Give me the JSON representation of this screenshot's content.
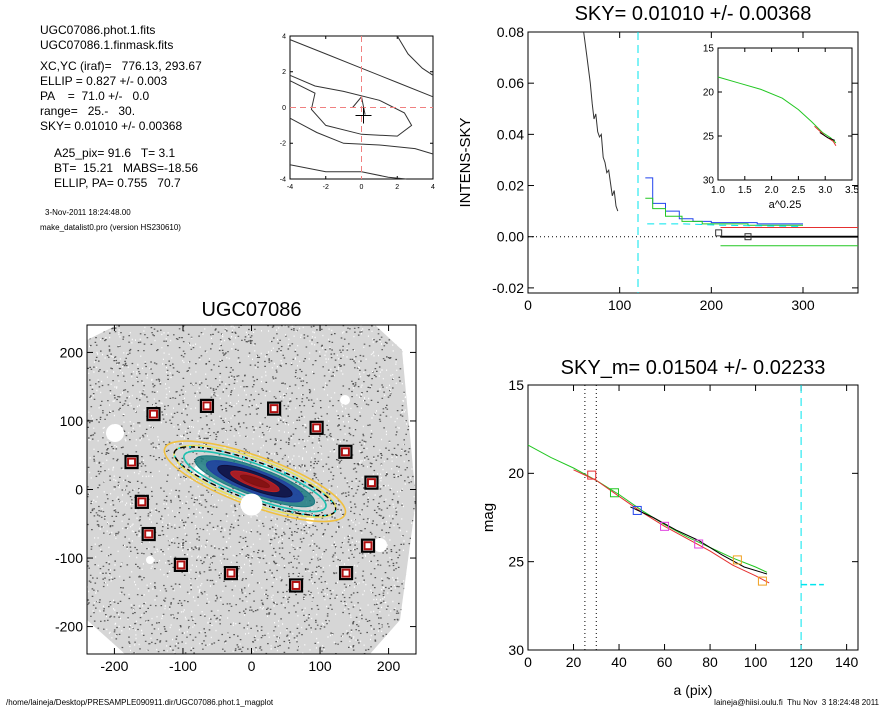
{
  "info": {
    "lines": [
      "UGC07086.phot.1.fits",
      "UGC07086.1.finmask.fits",
      "XC,YC (iraf)=   776.13, 293.67",
      "ELLIP = 0.827 +/- 0.003",
      "PA    =  71.0 +/-   0.0",
      "range=   25.-   30.",
      "SKY= 0.01010 +/- 0.00368",
      "A25_pix= 91.6   T= 3.1",
      "BT=  15.21   MABS=-18.56",
      "ELLIP, PA= 0.755   70.7",
      "3-Nov-2011 18:24:48.00",
      "make_datalist0.pro (version HS230610)"
    ]
  },
  "footer": {
    "left": "/home/laineja/Desktop/PRESAMPLE090911.dir/UGC07086.phot.1_magplot",
    "right": "laineja@hiisi.oulu.fi  Thu Nov  3 18:24:48 2011"
  },
  "colors": {
    "cyan": "#00e5ee",
    "green": "#22c722",
    "blue": "#2244ee",
    "red": "#e53030",
    "magenta": "#e040e0",
    "orange": "#f0a020",
    "gray": "#555555",
    "box_red": "#b01010"
  },
  "chart_data": [
    {
      "id": "center_contour",
      "type": "line",
      "xlim": [
        -4,
        4
      ],
      "ylim": [
        -4,
        4
      ],
      "xticks": [
        "-4",
        "-2",
        "0",
        "2",
        "4"
      ],
      "yticks": [
        "-4",
        "-2",
        "0",
        "2",
        "4"
      ],
      "contours": [
        [
          [
            -4.0,
            3.8
          ],
          [
            -2.0,
            3.0
          ],
          [
            0.0,
            2.2
          ],
          [
            2.0,
            1.4
          ],
          [
            4.0,
            0.6
          ]
        ],
        [
          [
            -4.0,
            1.8
          ],
          [
            -2.6,
            1.2
          ],
          [
            -1.0,
            0.9
          ],
          [
            1.0,
            0.4
          ],
          [
            2.4,
            -0.3
          ],
          [
            2.8,
            -1.0
          ],
          [
            2.0,
            -1.6
          ],
          [
            0.0,
            -1.5
          ],
          [
            -2.0,
            -1.0
          ],
          [
            -2.8,
            -0.1
          ],
          [
            -2.6,
            0.8
          ],
          [
            -4.0,
            1.5
          ]
        ],
        [
          [
            -4.0,
            -0.6
          ],
          [
            -2.5,
            -1.4
          ],
          [
            -1.0,
            -2.0
          ],
          [
            1.0,
            -2.1
          ],
          [
            3.0,
            -2.3
          ],
          [
            4.0,
            -2.6
          ]
        ],
        [
          [
            -4.0,
            -3.2
          ],
          [
            -2.0,
            -3.6
          ],
          [
            0.0,
            -3.6
          ],
          [
            1.5,
            -3.9
          ],
          [
            2.5,
            -4.0
          ]
        ],
        [
          [
            2.0,
            4.0
          ],
          [
            2.6,
            3.0
          ],
          [
            3.4,
            2.2
          ],
          [
            4.0,
            1.8
          ]
        ],
        [
          [
            -0.5,
            0.0
          ],
          [
            0.0,
            0.6
          ],
          [
            0.2,
            -0.4
          ]
        ]
      ],
      "center": [
        0.0,
        0.0
      ]
    },
    {
      "id": "sky_profile",
      "type": "line",
      "title": "SKY= 0.01010 +/- 0.00368",
      "ylabel": "INTENS-SKY",
      "xlim": [
        0,
        360
      ],
      "ylim": [
        -0.022,
        0.08
      ],
      "xticks": [
        0,
        100,
        200,
        300
      ],
      "yticks": [
        "-0.02",
        "0.00",
        "0.02",
        "0.04",
        "0.06",
        "0.08"
      ],
      "profile": {
        "x": [
          60,
          64,
          68,
          70,
          72,
          74,
          76,
          78,
          80,
          82,
          84,
          86,
          88,
          90,
          92,
          94,
          96,
          98
        ],
        "y": [
          0.082,
          0.071,
          0.06,
          0.052,
          0.046,
          0.048,
          0.041,
          0.039,
          0.04,
          0.031,
          0.029,
          0.025,
          0.026,
          0.021,
          0.016,
          0.018,
          0.012,
          0.01
        ]
      },
      "series": [
        {
          "name": "blue",
          "x": [
            128,
            136,
            136,
            150,
            150,
            165,
            165,
            180,
            180,
            200,
            200,
            250,
            250,
            300
          ],
          "y": [
            0.023,
            0.023,
            0.013,
            0.013,
            0.01,
            0.01,
            0.007,
            0.007,
            0.006,
            0.006,
            0.0055,
            0.0055,
            0.005,
            0.005
          ]
        },
        {
          "name": "green",
          "x": [
            128,
            136,
            136,
            150,
            150,
            168,
            168,
            190,
            190,
            240,
            240,
            300
          ],
          "y": [
            0.015,
            0.015,
            0.011,
            0.011,
            0.008,
            0.008,
            0.006,
            0.006,
            0.005,
            0.005,
            0.0045,
            0.0045
          ]
        },
        {
          "name": "cyan",
          "x": [
            130,
            170,
            210,
            260,
            300
          ],
          "y": [
            0.005,
            0.005,
            0.0045,
            0.0042,
            0.004
          ]
        },
        {
          "name": "red",
          "x": [
            210,
            360
          ],
          "y": [
            0.0036,
            0.0036
          ]
        },
        {
          "name": "green-low",
          "x": [
            210,
            360
          ],
          "y": [
            -0.0035,
            -0.0035
          ]
        },
        {
          "name": "black",
          "x": [
            210,
            360
          ],
          "y": [
            0.0,
            0.0
          ]
        }
      ],
      "markers": [
        [
          208,
          0.0015
        ],
        [
          240,
          0.0
        ]
      ],
      "zero_dotted_y": 0.0,
      "vline": 120
    },
    {
      "id": "inset_mag",
      "type": "line",
      "xlabel": "a^0.25",
      "xlim": [
        1.0,
        3.5
      ],
      "ylim": [
        15,
        30
      ],
      "xticks": [
        "1.0",
        "1.5",
        "2.0",
        "2.5",
        "3.0",
        "3.5"
      ],
      "yticks": [
        "15",
        "20",
        "25",
        "30"
      ],
      "series": [
        {
          "name": "green",
          "x": [
            1.0,
            1.4,
            1.8,
            2.2,
            2.5,
            2.75,
            2.95,
            3.1,
            3.2
          ],
          "y": [
            18.3,
            19.0,
            19.7,
            20.7,
            22.0,
            23.4,
            24.6,
            25.2,
            25.8
          ]
        },
        {
          "name": "red",
          "x": [
            2.8,
            3.0,
            3.15,
            3.2
          ],
          "y": [
            23.9,
            25.0,
            25.6,
            26.1
          ]
        },
        {
          "name": "black",
          "x": [
            2.9,
            3.05,
            3.18
          ],
          "y": [
            24.6,
            25.2,
            25.5
          ]
        }
      ]
    },
    {
      "id": "galaxy_image",
      "type": "scatter",
      "title": "UGC07086",
      "xlim": [
        -240,
        240
      ],
      "ylim": [
        -240,
        240
      ],
      "xticks": [
        -200,
        -100,
        0,
        100,
        200
      ],
      "yticks": [
        -200,
        -100,
        0,
        100,
        200
      ],
      "boxes": [
        [
          -65,
          122
        ],
        [
          -143,
          110
        ],
        [
          33,
          118
        ],
        [
          95,
          90
        ],
        [
          -175,
          40
        ],
        [
          137,
          55
        ],
        [
          -160,
          -18
        ],
        [
          175,
          10
        ],
        [
          -150,
          -65
        ],
        [
          170,
          -82
        ],
        [
          -103,
          -110
        ],
        [
          -30,
          -122
        ],
        [
          138,
          -122
        ],
        [
          65,
          -140
        ]
      ],
      "ellipse": {
        "cx": 5,
        "cy": 12,
        "a": 125,
        "b": 28,
        "pa_deg": 71.0
      }
    },
    {
      "id": "mag_profile",
      "type": "line",
      "title": "SKY_m=  0.01504 +/- 0.02233",
      "xlabel": "a (pix)",
      "ylabel": "mag",
      "xlim": [
        0,
        145
      ],
      "ylim": [
        15,
        30
      ],
      "xticks": [
        0,
        20,
        40,
        60,
        80,
        100,
        120,
        140
      ],
      "yticks": [
        15,
        20,
        25,
        30
      ],
      "series": [
        {
          "name": "green",
          "x": [
            0,
            10,
            20,
            30,
            40,
            50,
            60,
            70,
            80,
            90,
            100,
            105
          ],
          "y": [
            18.4,
            19.1,
            19.7,
            20.4,
            21.2,
            22.1,
            22.9,
            23.6,
            24.2,
            24.8,
            25.3,
            25.6
          ]
        },
        {
          "name": "red",
          "x": [
            20,
            30,
            40,
            50,
            60,
            70,
            80,
            90,
            100,
            106
          ],
          "y": [
            19.8,
            20.4,
            21.3,
            22.2,
            23.0,
            23.7,
            24.4,
            25.2,
            25.8,
            26.2
          ]
        },
        {
          "name": "black",
          "x": [
            45,
            55,
            65,
            75,
            85,
            95,
            105
          ],
          "y": [
            21.9,
            22.5,
            23.2,
            23.8,
            24.6,
            25.3,
            25.7
          ]
        }
      ],
      "markers": [
        {
          "x": 28,
          "y": 20.1,
          "c": "red"
        },
        {
          "x": 38,
          "y": 21.1,
          "c": "green"
        },
        {
          "x": 48,
          "y": 22.1,
          "c": "blue"
        },
        {
          "x": 60,
          "y": 23.0,
          "c": "magenta"
        },
        {
          "x": 75,
          "y": 24.0,
          "c": "magenta"
        },
        {
          "x": 92,
          "y": 24.9,
          "c": "orange"
        },
        {
          "x": 103,
          "y": 26.1,
          "c": "orange"
        }
      ],
      "vlines_dotted": [
        25,
        30
      ],
      "vline_dashed": 120,
      "hline_dashed": {
        "x": [
          120,
          130
        ],
        "y": 26.3
      }
    }
  ]
}
